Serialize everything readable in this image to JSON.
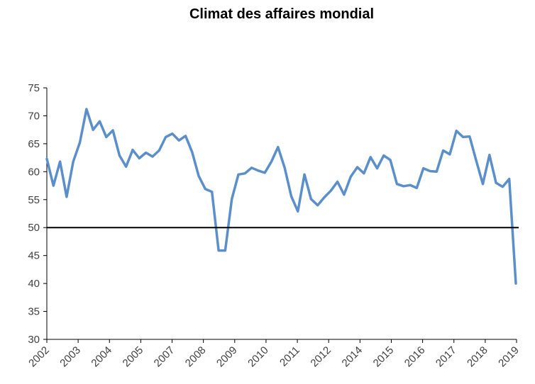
{
  "chart_data": {
    "type": "line",
    "title": "Climat des affaires mondial",
    "xlabel": "",
    "ylabel": "",
    "ylim": [
      30,
      75
    ],
    "yticks": [
      30,
      35,
      40,
      45,
      50,
      55,
      60,
      65,
      70,
      75
    ],
    "x_tick_labels": [
      "2002",
      "2003",
      "2004",
      "2005",
      "2007",
      "2008",
      "2009",
      "2010",
      "2011",
      "2012",
      "2014",
      "2015",
      "2016",
      "2017",
      "2018",
      "2019"
    ],
    "reference_line": 50,
    "grid": false,
    "legend": "none",
    "colors": {
      "series": "#5b8fc9",
      "reference": "#000000",
      "axis": "#000000",
      "text": "#404040"
    },
    "series": [
      {
        "values": [
          62.3,
          57.5,
          61.8,
          55.5,
          61.8,
          65.2,
          71.2,
          67.5,
          69.0,
          66.2,
          67.4,
          62.9,
          60.9,
          63.9,
          62.4,
          63.4,
          62.7,
          63.8,
          66.2,
          66.8,
          65.6,
          66.4,
          63.5,
          59.2,
          56.9,
          56.4,
          45.9,
          45.9,
          55.1,
          59.5,
          59.7,
          60.7,
          60.2,
          59.8,
          61.8,
          64.4,
          60.7,
          55.6,
          52.9,
          59.5,
          55.1,
          54.0,
          55.4,
          56.6,
          58.2,
          55.9,
          59.1,
          60.8,
          59.7,
          62.6,
          60.6,
          62.9,
          62.1,
          57.8,
          57.4,
          57.6,
          57.1,
          60.6,
          60.1,
          60.0,
          63.8,
          63.1,
          67.3,
          66.2,
          66.3,
          62.0,
          57.8,
          63.0,
          58.0,
          57.3,
          58.7,
          40.0
        ]
      }
    ]
  }
}
